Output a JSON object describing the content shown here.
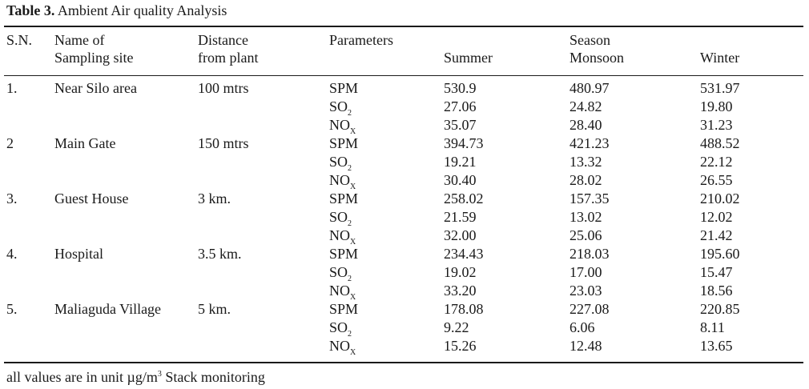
{
  "table": {
    "label": "Table 3.",
    "title": "Ambient Air quality Analysis",
    "headers": {
      "sn": "S.N.",
      "site_line1": "Name of",
      "site_line2": "Sampling site",
      "distance_line1": "Distance",
      "distance_line2": "from plant",
      "parameters": "Parameters",
      "season": "Season",
      "summer": "Summer",
      "monsoon": "Monsoon",
      "winter": "Winter"
    },
    "parameters": [
      {
        "base": "SPM",
        "sub": ""
      },
      {
        "base": "SO",
        "sub": "2"
      },
      {
        "base": "NO",
        "sub": "X"
      }
    ],
    "rows": [
      {
        "sn": "1.",
        "site": "Near Silo area",
        "distance": "100 mtrs",
        "values": [
          [
            "530.9",
            "480.97",
            "531.97"
          ],
          [
            "27.06",
            "24.82",
            "19.80"
          ],
          [
            "35.07",
            "28.40",
            "31.23"
          ]
        ]
      },
      {
        "sn": "2",
        "site": "Main Gate",
        "distance": "150 mtrs",
        "values": [
          [
            "394.73",
            "421.23",
            "488.52"
          ],
          [
            "19.21",
            "13.32",
            "22.12"
          ],
          [
            "30.40",
            "28.02",
            "26.55"
          ]
        ]
      },
      {
        "sn": "3.",
        "site": "Guest House",
        "distance": "3 km.",
        "values": [
          [
            "258.02",
            "157.35",
            "210.02"
          ],
          [
            "21.59",
            "13.02",
            "12.02"
          ],
          [
            "32.00",
            "25.06",
            "21.42"
          ]
        ]
      },
      {
        "sn": "4.",
        "site": "Hospital",
        "distance": "3.5 km.",
        "values": [
          [
            "234.43",
            "218.03",
            "195.60"
          ],
          [
            "19.02",
            "17.00",
            "15.47"
          ],
          [
            "33.20",
            "23.03",
            "18.56"
          ]
        ]
      },
      {
        "sn": "5.",
        "site": "Maliaguda Village",
        "distance": "5 km.",
        "values": [
          [
            "178.08",
            "227.08",
            "220.85"
          ],
          [
            "9.22",
            "6.06",
            "8.11"
          ],
          [
            "15.26",
            "12.48",
            "13.65"
          ]
        ]
      }
    ],
    "footnote": {
      "before": "all values are in unit µg/m",
      "exp": "3",
      "after": " Stack monitoring"
    }
  }
}
